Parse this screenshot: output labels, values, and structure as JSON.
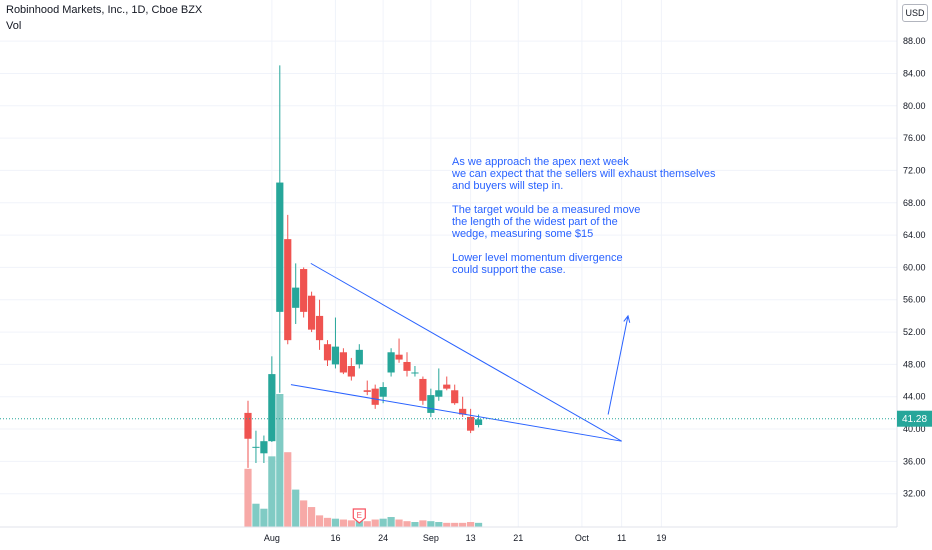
{
  "header": {
    "title": "Robinhood Markets, Inc., 1D, Cboe BZX",
    "volume_label": "Vol",
    "currency": "USD"
  },
  "annotation": {
    "lines": [
      "As we approach the apex next week",
      "we can expect that the sellers will exhaust themselves",
      "and buyers will step in.",
      "",
      "The target would be a measured move",
      "the length of the widest part of the",
      "wedge, measuring some $15",
      "",
      "Lower level momentum divergence",
      "could support the case."
    ]
  },
  "chart_data": {
    "type": "candlestick",
    "y_ticks": [
      "32.00",
      "36.00",
      "40.00",
      "44.00",
      "48.00",
      "52.00",
      "56.00",
      "60.00",
      "64.00",
      "68.00",
      "72.00",
      "76.00",
      "80.00",
      "84.00",
      "88.00"
    ],
    "ylim": [
      28.5,
      89.5
    ],
    "x_ticks": [
      {
        "label": "Aug",
        "bar": 3
      },
      {
        "label": "16",
        "bar": 11
      },
      {
        "label": "24",
        "bar": 17
      },
      {
        "label": "Sep",
        "bar": 23
      },
      {
        "label": "13",
        "bar": 28
      },
      {
        "label": "21",
        "bar": 34
      },
      {
        "label": "Oct",
        "bar": 42
      },
      {
        "label": "11",
        "bar": 47
      },
      {
        "label": "19",
        "bar": 52
      }
    ],
    "bar_step": 7.95,
    "first_bar_x": 248,
    "last_price": "41.28",
    "last_price_value": 41.28,
    "earnings_marker": {
      "label": "E",
      "bar": 14
    },
    "up_color": "#26a69a",
    "down_color": "#ef5350",
    "candles": [
      {
        "o": 42.0,
        "h": 43.5,
        "l": 35.2,
        "c": 38.8,
        "v": 70
      },
      {
        "o": 37.8,
        "h": 39.8,
        "l": 35.8,
        "c": 37.8,
        "v": 28
      },
      {
        "o": 37.0,
        "h": 39.2,
        "l": 35.8,
        "c": 38.5,
        "v": 22
      },
      {
        "o": 38.5,
        "h": 49.0,
        "l": 38.4,
        "c": 46.8,
        "v": 85
      },
      {
        "o": 54.5,
        "h": 85.0,
        "l": 44.5,
        "c": 70.5,
        "v": 160
      },
      {
        "o": 63.5,
        "h": 66.5,
        "l": 50.5,
        "c": 51.0,
        "v": 90
      },
      {
        "o": 55.0,
        "h": 60.5,
        "l": 53.0,
        "c": 57.5,
        "v": 45
      },
      {
        "o": 59.8,
        "h": 60.0,
        "l": 53.8,
        "c": 54.5,
        "v": 32
      },
      {
        "o": 56.5,
        "h": 57.0,
        "l": 52.0,
        "c": 52.3,
        "v": 24
      },
      {
        "o": 54.0,
        "h": 56.0,
        "l": 49.8,
        "c": 51.0,
        "v": 14
      },
      {
        "o": 50.5,
        "h": 51.0,
        "l": 47.8,
        "c": 48.5,
        "v": 11
      },
      {
        "o": 48.0,
        "h": 53.8,
        "l": 47.5,
        "c": 50.2,
        "v": 10
      },
      {
        "o": 49.5,
        "h": 50.0,
        "l": 46.8,
        "c": 47.0,
        "v": 9
      },
      {
        "o": 47.8,
        "h": 48.8,
        "l": 46.0,
        "c": 46.5,
        "v": 8
      },
      {
        "o": 48.0,
        "h": 50.5,
        "l": 47.5,
        "c": 49.8,
        "v": 8
      },
      {
        "o": 44.8,
        "h": 46.0,
        "l": 44.2,
        "c": 44.6,
        "v": 7
      },
      {
        "o": 45.0,
        "h": 45.5,
        "l": 42.5,
        "c": 43.0,
        "v": 9
      },
      {
        "o": 44.0,
        "h": 45.8,
        "l": 43.2,
        "c": 45.2,
        "v": 10
      },
      {
        "o": 47.0,
        "h": 50.0,
        "l": 46.5,
        "c": 49.5,
        "v": 12
      },
      {
        "o": 49.2,
        "h": 51.2,
        "l": 48.2,
        "c": 48.6,
        "v": 9
      },
      {
        "o": 48.3,
        "h": 49.5,
        "l": 46.5,
        "c": 47.2,
        "v": 7
      },
      {
        "o": 47.0,
        "h": 47.8,
        "l": 46.5,
        "c": 47.0,
        "v": 6
      },
      {
        "o": 46.2,
        "h": 46.5,
        "l": 43.0,
        "c": 43.5,
        "v": 8
      },
      {
        "o": 42.0,
        "h": 45.0,
        "l": 41.5,
        "c": 44.2,
        "v": 7
      },
      {
        "o": 44.0,
        "h": 47.5,
        "l": 43.5,
        "c": 44.8,
        "v": 6
      },
      {
        "o": 45.5,
        "h": 46.5,
        "l": 44.8,
        "c": 45.0,
        "v": 5
      },
      {
        "o": 44.8,
        "h": 45.5,
        "l": 43.0,
        "c": 43.2,
        "v": 5
      },
      {
        "o": 42.5,
        "h": 44.0,
        "l": 41.5,
        "c": 41.8,
        "v": 5
      },
      {
        "o": 41.5,
        "h": 42.5,
        "l": 39.5,
        "c": 39.8,
        "v": 6
      },
      {
        "o": 40.5,
        "h": 41.8,
        "l": 40.2,
        "c": 41.2,
        "v": 5
      }
    ],
    "trendlines": [
      {
        "bar1": 7.9,
        "p1": 60.5,
        "bar2": 47.0,
        "p2": 38.5
      },
      {
        "bar1": 5.4,
        "p1": 45.5,
        "bar2": 47.0,
        "p2": 38.5
      }
    ],
    "target_arrow": {
      "bar1": 45.3,
      "p1": 41.8,
      "bar2": 47.8,
      "p2": 54.0
    }
  }
}
